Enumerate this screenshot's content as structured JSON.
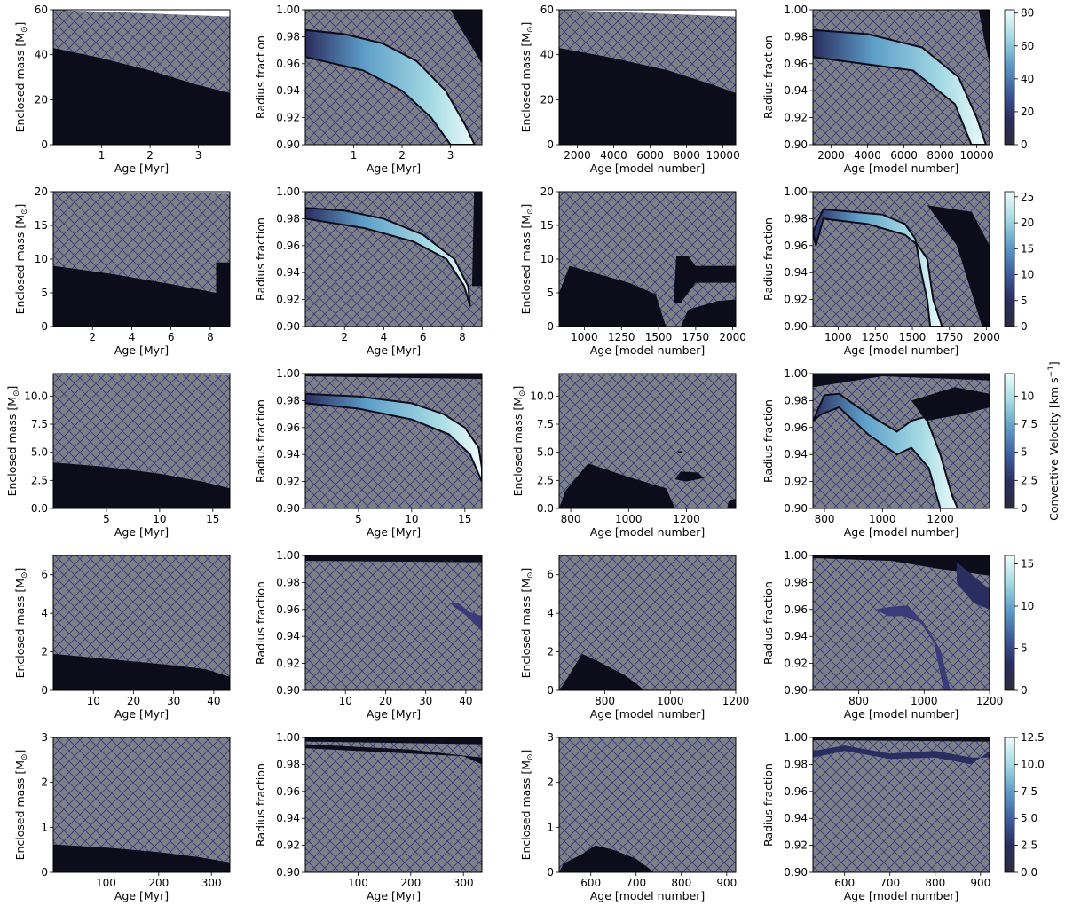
{
  "colors": {
    "hatch_bg": "#7f7f86",
    "hatch_line": "#2e3a86",
    "convective_dark": "#0c0c1a",
    "cmap": [
      "#2c2c3c",
      "#2a2d5f",
      "#3f5f9e",
      "#5e9ec8",
      "#a6dbe4",
      "#eefbfb"
    ]
  },
  "panel_text": {
    "enclosed_mass_label": "Enclosed mass [M",
    "enclosed_mass_sub": "⊙",
    "enclosed_mass_close": "]",
    "radius_fraction_label": "Radius fraction",
    "age_myr_label": "Age [Myr]",
    "age_model_label": "Age [model number]",
    "colorbar_label": "Convective Velocity [km s",
    "colorbar_label_exp": "−1",
    "colorbar_label_close": "]"
  },
  "chart_data": [
    {
      "type": "heatmap",
      "row": 0,
      "col": 0,
      "xlabel": "Age [Myr]",
      "ylabel": "Enclosed mass [M⊙]",
      "xlim": [
        0,
        3.65
      ],
      "ylim": [
        0,
        60
      ],
      "xticks": [
        1,
        2,
        3
      ],
      "yticks": [
        0,
        20,
        40,
        60
      ]
    },
    {
      "type": "heatmap",
      "row": 0,
      "col": 1,
      "xlabel": "Age [Myr]",
      "ylabel": "Radius fraction",
      "xlim": [
        0,
        3.65
      ],
      "ylim": [
        0.9,
        1.0
      ],
      "xticks": [
        1,
        2,
        3
      ],
      "yticks": [
        0.9,
        0.92,
        0.94,
        0.96,
        0.98,
        1.0
      ]
    },
    {
      "type": "heatmap",
      "row": 0,
      "col": 2,
      "xlabel": "Age [model number]",
      "ylabel": "Enclosed mass [M⊙]",
      "xlim": [
        1000,
        10700
      ],
      "ylim": [
        0,
        60
      ],
      "xticks": [
        2000,
        4000,
        6000,
        8000,
        10000
      ],
      "yticks": [
        0,
        20,
        40,
        60
      ]
    },
    {
      "type": "heatmap",
      "row": 0,
      "col": 3,
      "xlabel": "Age [model number]",
      "ylabel": "Radius fraction",
      "xlim": [
        1000,
        10700
      ],
      "ylim": [
        0.9,
        1.0
      ],
      "xticks": [
        2000,
        4000,
        6000,
        8000,
        10000
      ],
      "yticks": [
        0.9,
        0.92,
        0.94,
        0.96,
        0.98,
        1.0
      ],
      "colorbar": {
        "max": 82,
        "ticks": [
          0,
          20,
          40,
          60,
          80
        ],
        "show_label": false
      }
    },
    {
      "type": "heatmap",
      "row": 1,
      "col": 0,
      "xlabel": "Age [Myr]",
      "ylabel": "Enclosed mass [M⊙]",
      "xlim": [
        0,
        9.0
      ],
      "ylim": [
        0,
        20
      ],
      "xticks": [
        2,
        4,
        6,
        8
      ],
      "yticks": [
        0,
        5,
        10,
        15,
        20
      ]
    },
    {
      "type": "heatmap",
      "row": 1,
      "col": 1,
      "xlabel": "Age [Myr]",
      "ylabel": "Radius fraction",
      "xlim": [
        0,
        9.0
      ],
      "ylim": [
        0.9,
        1.0
      ],
      "xticks": [
        2,
        4,
        6,
        8
      ],
      "yticks": [
        0.9,
        0.92,
        0.94,
        0.96,
        0.98,
        1.0
      ]
    },
    {
      "type": "heatmap",
      "row": 1,
      "col": 2,
      "xlabel": "Age [model number]",
      "ylabel": "Enclosed mass [M⊙]",
      "xlim": [
        830,
        2020
      ],
      "ylim": [
        0,
        20
      ],
      "xticks": [
        1000,
        1250,
        1500,
        1750,
        2000
      ],
      "yticks": [
        0,
        5,
        10,
        15,
        20
      ]
    },
    {
      "type": "heatmap",
      "row": 1,
      "col": 3,
      "xlabel": "Age [model number]",
      "ylabel": "Radius fraction",
      "xlim": [
        830,
        2020
      ],
      "ylim": [
        0.9,
        1.0
      ],
      "xticks": [
        1000,
        1250,
        1500,
        1750,
        2000
      ],
      "yticks": [
        0.9,
        0.92,
        0.94,
        0.96,
        0.98,
        1.0
      ],
      "colorbar": {
        "max": 26,
        "ticks": [
          0,
          5,
          10,
          15,
          20,
          25
        ],
        "show_label": false
      }
    },
    {
      "type": "heatmap",
      "row": 2,
      "col": 0,
      "xlabel": "Age [Myr]",
      "ylabel": "Enclosed mass [M⊙]",
      "xlim": [
        0,
        16.6
      ],
      "ylim": [
        0,
        12
      ],
      "xticks": [
        5,
        10,
        15
      ],
      "yticks": [
        0,
        2.5,
        5.0,
        7.5,
        10.0
      ]
    },
    {
      "type": "heatmap",
      "row": 2,
      "col": 1,
      "xlabel": "Age [Myr]",
      "ylabel": "Radius fraction",
      "xlim": [
        0,
        16.6
      ],
      "ylim": [
        0.9,
        1.0
      ],
      "xticks": [
        5,
        10,
        15
      ],
      "yticks": [
        0.9,
        0.92,
        0.94,
        0.96,
        0.98,
        1.0
      ]
    },
    {
      "type": "heatmap",
      "row": 2,
      "col": 2,
      "xlabel": "Age [model number]",
      "ylabel": "Enclosed mass [M⊙]",
      "xlim": [
        760,
        1370
      ],
      "ylim": [
        0,
        12
      ],
      "xticks": [
        800,
        1000,
        1200
      ],
      "yticks": [
        0,
        2.5,
        5.0,
        7.5,
        10.0
      ]
    },
    {
      "type": "heatmap",
      "row": 2,
      "col": 3,
      "xlabel": "Age [model number]",
      "ylabel": "Radius fraction",
      "xlim": [
        760,
        1370
      ],
      "ylim": [
        0.9,
        1.0
      ],
      "xticks": [
        800,
        1000,
        1200
      ],
      "yticks": [
        0.9,
        0.92,
        0.94,
        0.96,
        0.98,
        1.0
      ],
      "colorbar": {
        "max": 12,
        "ticks": [
          0,
          2.5,
          5.0,
          7.5,
          10.0
        ],
        "show_label": true
      }
    },
    {
      "type": "heatmap",
      "row": 3,
      "col": 0,
      "xlabel": "Age [Myr]",
      "ylabel": "Enclosed mass [M⊙]",
      "xlim": [
        0,
        44
      ],
      "ylim": [
        0,
        7
      ],
      "xticks": [
        10,
        20,
        30,
        40
      ],
      "yticks": [
        0,
        2,
        4,
        6
      ]
    },
    {
      "type": "heatmap",
      "row": 3,
      "col": 1,
      "xlabel": "Age [Myr]",
      "ylabel": "Radius fraction",
      "xlim": [
        0,
        44
      ],
      "ylim": [
        0.9,
        1.0
      ],
      "xticks": [
        10,
        20,
        30,
        40
      ],
      "yticks": [
        0.9,
        0.92,
        0.94,
        0.96,
        0.98,
        1.0
      ]
    },
    {
      "type": "heatmap",
      "row": 3,
      "col": 2,
      "xlabel": "Age [model number]",
      "ylabel": "Enclosed mass [M⊙]",
      "xlim": [
        660,
        1200
      ],
      "ylim": [
        0,
        7
      ],
      "xticks": [
        800,
        1000,
        1200
      ],
      "yticks": [
        0,
        2,
        4,
        6
      ]
    },
    {
      "type": "heatmap",
      "row": 3,
      "col": 3,
      "xlabel": "Age [model number]",
      "ylabel": "Radius fraction",
      "xlim": [
        660,
        1200
      ],
      "ylim": [
        0.9,
        1.0
      ],
      "xticks": [
        800,
        1000,
        1200
      ],
      "yticks": [
        0.9,
        0.92,
        0.94,
        0.96,
        0.98,
        1.0
      ],
      "colorbar": {
        "max": 16,
        "ticks": [
          0,
          5,
          10,
          15
        ],
        "show_label": false
      }
    },
    {
      "type": "heatmap",
      "row": 4,
      "col": 0,
      "xlabel": "Age [Myr]",
      "ylabel": "Enclosed mass [M⊙]",
      "xlim": [
        0,
        335
      ],
      "ylim": [
        0,
        3
      ],
      "xticks": [
        100,
        200,
        300
      ],
      "yticks": [
        0,
        1,
        2,
        3
      ]
    },
    {
      "type": "heatmap",
      "row": 4,
      "col": 1,
      "xlabel": "Age [Myr]",
      "ylabel": "Radius fraction",
      "xlim": [
        0,
        335
      ],
      "ylim": [
        0.9,
        1.0
      ],
      "xticks": [
        100,
        200,
        300
      ],
      "yticks": [
        0.9,
        0.92,
        0.94,
        0.96,
        0.98,
        1.0
      ]
    },
    {
      "type": "heatmap",
      "row": 4,
      "col": 2,
      "xlabel": "Age [model number]",
      "ylabel": "Enclosed mass [M⊙]",
      "xlim": [
        530,
        920
      ],
      "ylim": [
        0,
        3
      ],
      "xticks": [
        600,
        700,
        800,
        900
      ],
      "yticks": [
        0,
        1,
        2,
        3
      ]
    },
    {
      "type": "heatmap",
      "row": 4,
      "col": 3,
      "xlabel": "Age [model number]",
      "ylabel": "Radius fraction",
      "xlim": [
        530,
        920
      ],
      "ylim": [
        0.9,
        1.0
      ],
      "xticks": [
        600,
        700,
        800,
        900
      ],
      "yticks": [
        0.9,
        0.92,
        0.94,
        0.96,
        0.98,
        1.0
      ],
      "colorbar": {
        "max": 12.5,
        "ticks": [
          0,
          2.5,
          5.0,
          7.5,
          10.0,
          12.5
        ],
        "show_label": false
      }
    }
  ]
}
